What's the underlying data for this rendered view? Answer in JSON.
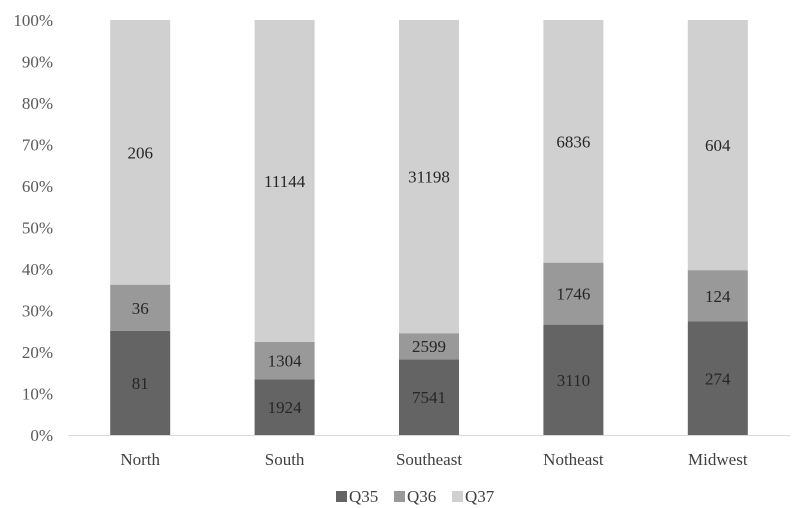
{
  "chart_data": {
    "type": "bar",
    "stacked": "percent",
    "categories": [
      "North",
      "South",
      "Southeast",
      "Notheast",
      "Midwest"
    ],
    "series": [
      {
        "name": "Q35",
        "values": [
          81,
          1924,
          7541,
          3110,
          274
        ],
        "color": "#646464"
      },
      {
        "name": "Q36",
        "values": [
          36,
          1304,
          2599,
          1746,
          124
        ],
        "color": "#999999"
      },
      {
        "name": "Q37",
        "values": [
          206,
          11144,
          31198,
          6836,
          604
        ],
        "color": "#d0d0d0"
      }
    ],
    "y_ticks": [
      "0%",
      "10%",
      "20%",
      "30%",
      "40%",
      "50%",
      "60%",
      "70%",
      "80%",
      "90%",
      "100%"
    ],
    "ylim": [
      0,
      100
    ],
    "grid": false,
    "legend_position": "bottom",
    "title": "",
    "xlabel": "",
    "ylabel": ""
  }
}
